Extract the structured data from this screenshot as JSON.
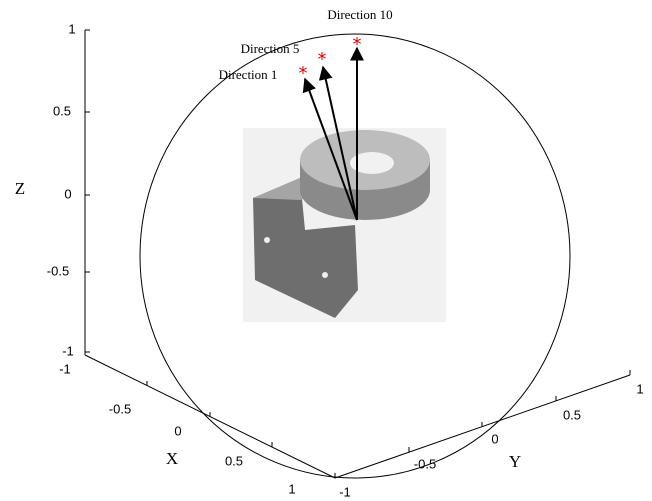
{
  "figure": {
    "axes": {
      "z": {
        "label": "Z",
        "ticks": [
          "1",
          "0.5",
          "0",
          "-0.5",
          "-1"
        ]
      },
      "x": {
        "label": "X",
        "ticks": [
          "-1",
          "-0.5",
          "0",
          "0.5",
          "1"
        ]
      },
      "y": {
        "label": "Y",
        "ticks": [
          "-1",
          "-0.5",
          "0",
          "0.5",
          "1"
        ]
      }
    },
    "annotations": [
      "Direction 10",
      "Direction 5",
      "Direction 1"
    ]
  }
}
